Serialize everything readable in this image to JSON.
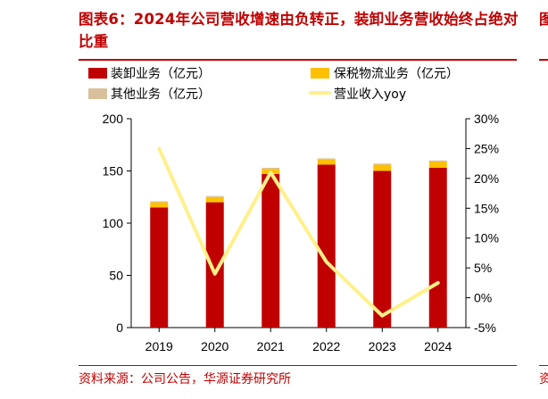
{
  "header": {
    "title": "图表6：2024年公司营收增速由负转正，装卸业务营收始终占绝对比重",
    "neighbor_title_fragment": "图",
    "neighbor_source_fragment": "资"
  },
  "footer": {
    "source": "资料来源：公司公告，华源证券研究所"
  },
  "colors": {
    "accent": "#c00000",
    "loading": "#c00000",
    "bonded": "#ffc000",
    "other": "#d8c19a",
    "yoy": "#fff08a"
  },
  "chart_data": {
    "type": "bar",
    "categories": [
      "2019",
      "2020",
      "2021",
      "2022",
      "2023",
      "2024"
    ],
    "series": [
      {
        "name": "装卸业务（亿元）",
        "type": "bar",
        "values": [
          115,
          120,
          147,
          156,
          150,
          153
        ]
      },
      {
        "name": "保税物流业务（亿元）",
        "type": "bar",
        "values": [
          5,
          5,
          5,
          5,
          6,
          6
        ]
      },
      {
        "name": "其他业务（亿元）",
        "type": "bar",
        "values": [
          1,
          1,
          1,
          1,
          1,
          1
        ]
      },
      {
        "name": "营业收入yoy",
        "type": "line",
        "axis": "right",
        "values": [
          25,
          4,
          21,
          6,
          -3,
          2.5
        ]
      }
    ],
    "ylim_left": [
      0,
      200
    ],
    "ylim_right": [
      -5,
      30
    ],
    "left_ticks": [
      0,
      50,
      100,
      150,
      200
    ],
    "right_ticks": [
      "-5%",
      "0%",
      "5%",
      "10%",
      "15%",
      "20%",
      "25%",
      "30%"
    ],
    "xlabel": "",
    "ylabel": "",
    "legend_position": "top",
    "grid": false
  }
}
